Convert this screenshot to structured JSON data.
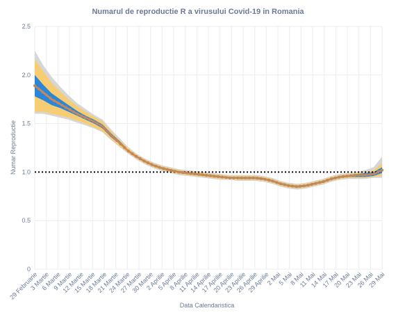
{
  "chart_data": {
    "type": "line",
    "title": "Numarul de reproductie R a virusului Covid-19 in Romania",
    "xlabel": "Data Calendaristica",
    "ylabel": "Numar Reproductie",
    "ylim": [
      0,
      2.5
    ],
    "yticks": [
      "0",
      "0.5",
      "1.0",
      "1.5",
      "2.0",
      "2.5"
    ],
    "grid": true,
    "reference_line": {
      "value": 1.0,
      "style": "dotted",
      "color": "#000000"
    },
    "x_tick_labels": [
      "29 Februarie",
      "3 Martie",
      "6 Martie",
      "9 Martie",
      "12 Martie",
      "15 Martie",
      "18 Martie",
      "21 Martie",
      "24 Martie",
      "27 Martie",
      "30 Martie",
      "2 Aprilie",
      "5 Aprilie",
      "8 Aprilie",
      "11 Aprilie",
      "14 Aprilie",
      "17 Aprilie",
      "20 Aprilie",
      "23 Aprilie",
      "26 Aprilie",
      "29 Aprilie",
      "2 Mai",
      "5 Mai",
      "8 Mai",
      "11 Mai",
      "14 Mai",
      "17 Mai",
      "20 Mai",
      "23 Mai",
      "26 Mai",
      "29 Mai"
    ],
    "colors": {
      "mean": "#e2843a",
      "points": "#b88a6a",
      "band_inner": "#2b86d9",
      "band_mid": "#f6cd73",
      "band_outer": "#d6d6d6"
    },
    "series": [
      {
        "x_start_index": 0,
        "mean": [
          1.89,
          1.82,
          1.75,
          1.7,
          1.65,
          1.6,
          1.56,
          1.52,
          1.47,
          1.38,
          1.3,
          1.22,
          1.16,
          1.11,
          1.07,
          1.04,
          1.02,
          1.0,
          0.99,
          0.98,
          0.97,
          0.96,
          0.95,
          0.94,
          0.94,
          0.94,
          0.94,
          0.93,
          0.91,
          0.88,
          0.86,
          0.85,
          0.86,
          0.88,
          0.9,
          0.93,
          0.95,
          0.96,
          0.97,
          0.97,
          0.98,
          1.02
        ],
        "inner_low": [
          1.78,
          1.74,
          1.69,
          1.66,
          1.62,
          1.58,
          1.54,
          1.5,
          1.45,
          1.36,
          1.29,
          1.21,
          1.15,
          1.1,
          1.06,
          1.03,
          1.01,
          0.99,
          0.98,
          0.97,
          0.96,
          0.95,
          0.94,
          0.94,
          0.93,
          0.93,
          0.93,
          0.92,
          0.9,
          0.87,
          0.85,
          0.84,
          0.85,
          0.87,
          0.89,
          0.92,
          0.94,
          0.95,
          0.95,
          0.95,
          0.96,
          0.99
        ],
        "inner_high": [
          2.0,
          1.9,
          1.81,
          1.75,
          1.69,
          1.63,
          1.58,
          1.54,
          1.49,
          1.4,
          1.32,
          1.23,
          1.17,
          1.12,
          1.08,
          1.05,
          1.03,
          1.01,
          1.0,
          0.99,
          0.98,
          0.97,
          0.96,
          0.95,
          0.95,
          0.95,
          0.95,
          0.94,
          0.92,
          0.89,
          0.87,
          0.86,
          0.87,
          0.89,
          0.91,
          0.94,
          0.96,
          0.97,
          0.98,
          0.99,
          1.0,
          1.05
        ],
        "mid_low": [
          1.62,
          1.62,
          1.6,
          1.58,
          1.56,
          1.53,
          1.5,
          1.46,
          1.42,
          1.34,
          1.27,
          1.2,
          1.14,
          1.09,
          1.05,
          1.02,
          1.0,
          0.98,
          0.97,
          0.96,
          0.95,
          0.94,
          0.93,
          0.93,
          0.92,
          0.92,
          0.92,
          0.91,
          0.89,
          0.86,
          0.84,
          0.83,
          0.84,
          0.86,
          0.88,
          0.91,
          0.93,
          0.94,
          0.94,
          0.94,
          0.95,
          0.96
        ],
        "mid_high": [
          2.16,
          2.04,
          1.92,
          1.83,
          1.75,
          1.68,
          1.62,
          1.57,
          1.52,
          1.42,
          1.33,
          1.25,
          1.18,
          1.13,
          1.09,
          1.06,
          1.04,
          1.02,
          1.01,
          1.0,
          0.99,
          0.98,
          0.97,
          0.96,
          0.96,
          0.96,
          0.96,
          0.95,
          0.93,
          0.9,
          0.88,
          0.87,
          0.88,
          0.9,
          0.92,
          0.95,
          0.97,
          0.98,
          0.99,
          1.0,
          1.02,
          1.09
        ],
        "outer_low": [
          1.6,
          1.6,
          1.58,
          1.56,
          1.54,
          1.51,
          1.48,
          1.45,
          1.41,
          1.33,
          1.26,
          1.19,
          1.13,
          1.08,
          1.04,
          1.01,
          0.99,
          0.97,
          0.96,
          0.95,
          0.94,
          0.93,
          0.92,
          0.92,
          0.91,
          0.91,
          0.91,
          0.9,
          0.88,
          0.85,
          0.83,
          0.82,
          0.83,
          0.85,
          0.87,
          0.9,
          0.92,
          0.93,
          0.93,
          0.93,
          0.94,
          0.94
        ],
        "outer_high": [
          2.25,
          2.1,
          1.98,
          1.88,
          1.79,
          1.71,
          1.65,
          1.59,
          1.54,
          1.44,
          1.35,
          1.26,
          1.19,
          1.14,
          1.1,
          1.07,
          1.05,
          1.03,
          1.02,
          1.01,
          1.0,
          0.99,
          0.98,
          0.97,
          0.97,
          0.97,
          0.97,
          0.96,
          0.94,
          0.91,
          0.89,
          0.88,
          0.89,
          0.91,
          0.93,
          0.96,
          0.98,
          0.99,
          1.0,
          1.02,
          1.05,
          1.16
        ]
      }
    ]
  }
}
